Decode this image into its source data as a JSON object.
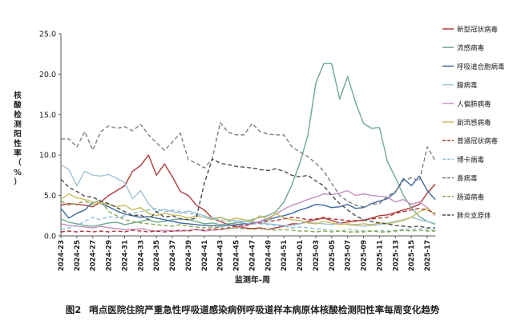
{
  "caption": {
    "figure_label": "图2",
    "text": "哨点医院住院严重急性呼吸道感染病例呼吸道样本病原体核酸检测阳性率每周变化趋势"
  },
  "chart_data": {
    "type": "line",
    "ylabel": "核酸检测阳性率（%）",
    "xlabel": "监测年-周",
    "ylim": [
      0,
      25
    ],
    "yticks": [
      "0.0",
      "5.0",
      "10.0",
      "15.0",
      "20.0",
      "25.0"
    ],
    "grid": false,
    "legend_position": "right",
    "xtick_labels": [
      "2024-23",
      "2024-25",
      "2024-27",
      "2024-29",
      "2024-31",
      "2024-33",
      "2024-35",
      "2024-37",
      "2024-39",
      "2024-41",
      "2024-43",
      "2024-45",
      "2024-47",
      "2024-49",
      "2024-51",
      "2025-01",
      "2025-03",
      "2025-05",
      "2025-07",
      "2025-09",
      "2025-11",
      "2025-13",
      "2025-15",
      "2025-17"
    ],
    "x_count": 48,
    "series": [
      {
        "name": "新型冠状病毒",
        "color": "#b03a3a",
        "dash": "solid",
        "values": [
          3.8,
          4.0,
          3.9,
          3.8,
          3.6,
          4.2,
          5.0,
          5.6,
          6.2,
          8.0,
          8.7,
          10.0,
          7.5,
          8.9,
          7.3,
          5.5,
          5.0,
          3.8,
          3.2,
          2.2,
          1.8,
          1.4,
          1.2,
          1.0,
          0.9,
          1.0,
          0.8,
          1.0,
          1.2,
          1.5,
          1.5,
          1.8,
          2.0,
          2.2,
          1.9,
          1.6,
          1.7,
          1.9,
          1.9,
          2.2,
          2.5,
          2.6,
          2.9,
          3.2,
          3.5,
          3.9,
          5.3,
          6.4
        ]
      },
      {
        "name": "流感病毒",
        "color": "#6fa98d",
        "dash": "solid",
        "values": [
          2.1,
          1.7,
          1.5,
          1.3,
          1.2,
          1.4,
          1.6,
          1.7,
          1.4,
          1.6,
          1.8,
          2.0,
          1.7,
          1.8,
          2.0,
          2.1,
          2.0,
          1.8,
          1.5,
          1.6,
          1.4,
          1.5,
          1.6,
          1.8,
          2.0,
          2.3,
          2.5,
          3.0,
          4.2,
          6.3,
          9.0,
          12.4,
          18.9,
          21.3,
          21.3,
          16.9,
          19.7,
          16.5,
          13.9,
          13.3,
          13.4,
          9.2,
          7.2,
          5.0,
          3.5,
          2.4,
          1.8,
          1.5
        ]
      },
      {
        "name": "呼吸道合胞病毒",
        "color": "#3f6aa0",
        "dash": "solid",
        "values": [
          3.4,
          2.2,
          2.8,
          3.2,
          4.2,
          4.0,
          3.6,
          3.1,
          2.7,
          2.5,
          2.3,
          2.4,
          2.2,
          2.0,
          1.8,
          1.6,
          1.5,
          1.4,
          1.3,
          1.3,
          1.2,
          1.3,
          1.4,
          1.5,
          1.6,
          1.8,
          2.0,
          2.3,
          2.5,
          2.8,
          3.2,
          3.5,
          3.9,
          3.8,
          3.5,
          3.6,
          3.9,
          3.4,
          3.5,
          4.0,
          4.3,
          4.6,
          5.4,
          7.1,
          6.2,
          7.4,
          5.6,
          4.5
        ]
      },
      {
        "name": "腺病毒",
        "color": "#9fc2d4",
        "dash": "solid",
        "values": [
          8.8,
          8.2,
          6.2,
          8.0,
          7.5,
          7.4,
          7.6,
          7.1,
          6.6,
          4.6,
          5.6,
          4.0,
          3.0,
          3.3,
          3.0,
          2.8,
          3.1,
          2.8,
          2.5,
          2.2,
          2.3,
          2.0,
          1.9,
          1.8,
          1.8,
          1.6,
          1.5,
          1.4,
          1.3,
          1.3,
          1.5,
          1.7,
          1.6,
          1.5,
          1.4,
          1.6,
          1.4,
          1.3,
          1.2,
          1.3,
          1.4,
          1.6,
          1.8,
          2.0,
          2.3,
          2.0,
          1.8,
          1.4
        ]
      },
      {
        "name": "人偏肺病毒",
        "color": "#c58ec0",
        "dash": "solid",
        "values": [
          1.5,
          1.3,
          1.2,
          1.1,
          1.0,
          1.2,
          1.0,
          0.9,
          0.8,
          0.8,
          0.9,
          0.7,
          0.6,
          0.7,
          0.6,
          0.6,
          0.7,
          0.8,
          0.6,
          0.7,
          0.8,
          0.9,
          1.0,
          1.2,
          1.5,
          1.8,
          2.2,
          2.7,
          3.3,
          3.8,
          4.1,
          4.5,
          4.8,
          5.2,
          5.1,
          5.3,
          5.6,
          5.0,
          5.2,
          5.0,
          4.9,
          4.8,
          4.2,
          4.5,
          3.9,
          4.2,
          3.5,
          2.5
        ]
      },
      {
        "name": "副流感病毒",
        "color": "#c9bc5b",
        "dash": "solid",
        "values": [
          4.5,
          5.2,
          4.7,
          4.5,
          4.2,
          4.0,
          3.9,
          3.6,
          3.8,
          3.2,
          3.5,
          2.8,
          2.5,
          2.8,
          2.6,
          2.5,
          2.2,
          2.5,
          2.3,
          2.0,
          2.3,
          1.9,
          2.2,
          2.0,
          1.8,
          2.5,
          2.0,
          2.8,
          2.2,
          2.0,
          1.9,
          1.6,
          1.5,
          1.8,
          1.6,
          1.4,
          1.5,
          1.4,
          1.5,
          1.4,
          1.6,
          1.5,
          1.7,
          1.9,
          2.3,
          3.0,
          3.4,
          2.6
        ]
      },
      {
        "name": "普通冠状病毒",
        "color": "#b03a3a",
        "dash": "dash",
        "values": [
          0.5,
          0.6,
          0.5,
          0.6,
          0.5,
          0.6,
          0.5,
          0.6,
          0.5,
          0.7,
          0.6,
          0.5,
          0.6,
          0.5,
          0.6,
          0.7,
          0.6,
          0.8,
          0.7,
          0.9,
          0.8,
          1.0,
          1.2,
          1.3,
          1.5,
          1.6,
          1.8,
          1.9,
          2.1,
          2.3,
          2.2,
          2.0,
          2.1,
          2.3,
          2.1,
          2.0,
          1.9,
          1.8,
          2.0,
          2.1,
          2.2,
          2.3,
          2.8,
          3.0,
          3.2,
          3.4,
          3.2,
          2.8
        ]
      },
      {
        "name": "博卡病毒",
        "color": "#8cc0d6",
        "dash": "dash",
        "values": [
          0.8,
          1.0,
          1.3,
          1.8,
          2.3,
          2.0,
          2.4,
          2.2,
          2.5,
          2.8,
          3.0,
          3.2,
          3.4,
          3.0,
          3.2,
          3.0,
          2.8,
          2.6,
          2.3,
          2.1,
          2.0,
          1.8,
          1.7,
          1.6,
          1.5,
          1.5,
          1.4,
          1.3,
          1.2,
          1.0,
          1.1,
          1.0,
          0.9,
          0.8,
          0.7,
          0.6,
          0.8,
          0.7,
          0.6,
          0.6,
          0.7,
          0.6,
          0.7,
          0.8,
          0.8,
          0.9,
          0.8,
          0.7
        ]
      },
      {
        "name": "鼻病毒",
        "color": "#7f7f7f",
        "dash": "dash",
        "values": [
          12.0,
          12.0,
          11.0,
          12.9,
          10.6,
          12.9,
          13.6,
          13.3,
          13.5,
          13.0,
          13.8,
          12.5,
          11.5,
          10.6,
          11.6,
          12.7,
          9.4,
          9.0,
          8.4,
          9.5,
          14.0,
          12.8,
          12.5,
          12.5,
          13.9,
          12.9,
          12.6,
          12.5,
          12.5,
          11.0,
          10.4,
          9.8,
          9.0,
          8.0,
          6.5,
          5.0,
          4.3,
          3.8,
          3.6,
          3.9,
          4.0,
          4.9,
          5.5,
          6.8,
          7.2,
          6.8,
          11.0,
          9.3
        ]
      },
      {
        "name": "肠道病毒",
        "color": "#8aa84e",
        "dash": "dash",
        "values": [
          4.3,
          3.8,
          4.0,
          4.3,
          3.9,
          4.5,
          3.0,
          2.5,
          2.0,
          1.8,
          1.6,
          1.5,
          1.4,
          1.3,
          1.2,
          1.4,
          1.2,
          1.1,
          1.0,
          1.1,
          1.0,
          0.9,
          1.0,
          0.9,
          0.8,
          0.9,
          0.8,
          0.7,
          0.8,
          0.7,
          0.6,
          0.6,
          0.5,
          0.6,
          0.5,
          0.6,
          0.5,
          0.5,
          0.5,
          0.6,
          0.5,
          0.5,
          0.6,
          0.7,
          0.6,
          0.7,
          0.6,
          0.6
        ]
      },
      {
        "name": "肺炎支原体",
        "color": "#4a4a4a",
        "dash": "dash",
        "values": [
          7.0,
          6.0,
          5.5,
          4.9,
          4.8,
          4.3,
          4.0,
          3.5,
          3.0,
          2.5,
          2.6,
          2.0,
          3.0,
          2.3,
          2.5,
          2.1,
          2.0,
          2.2,
          6.5,
          9.5,
          9.0,
          8.8,
          8.6,
          8.5,
          8.4,
          8.2,
          8.1,
          8.3,
          8.0,
          7.5,
          7.3,
          7.5,
          6.8,
          6.2,
          5.0,
          4.0,
          3.2,
          2.5,
          2.0,
          1.8,
          1.6,
          1.5,
          1.3,
          1.2,
          1.1,
          1.2,
          1.0,
          1.0
        ]
      }
    ]
  }
}
